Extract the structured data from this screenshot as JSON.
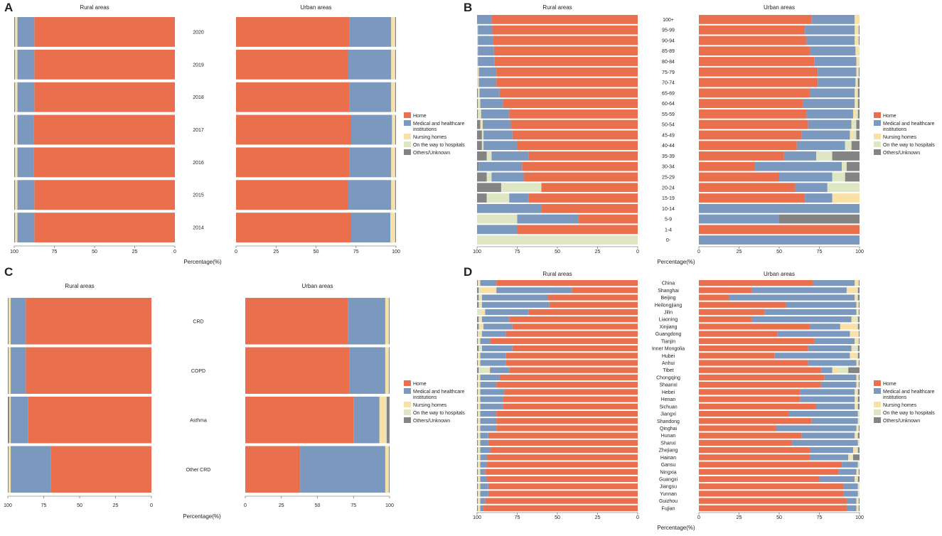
{
  "legend": [
    "Home",
    "Medical and healthcare institutions",
    "Nursing homes",
    "On the way to hospitals",
    "Others/Unknown"
  ],
  "legend_lines": [
    [
      "Home"
    ],
    [
      "Medical and healthcare",
      "institutions"
    ],
    [
      "Nursing homes"
    ],
    [
      "On the way to hospitals"
    ],
    [
      "Others/Unknown"
    ]
  ],
  "colors": [
    "#EA6F4C",
    "#7B98BE",
    "#F8E0A6",
    "#DEE6C4",
    "#848484"
  ],
  "chart_data": [
    {
      "type": "bar",
      "panel": "A",
      "orientation": "horizontal",
      "stacked": true,
      "title_left": "Rural areas",
      "title_right": "Urban areas",
      "xlabel": "Percentage(%)",
      "categories": [
        "2020",
        "2019",
        "2018",
        "2017",
        "2016",
        "2015",
        "2014"
      ],
      "ticks": [
        0,
        25,
        50,
        75,
        100
      ],
      "rural": [
        [
          87.5,
          10.5,
          1,
          0.5,
          0.5
        ],
        [
          87.5,
          10.5,
          1,
          0.5,
          0.5
        ],
        [
          87.5,
          10.5,
          1,
          0.5,
          0.5
        ],
        [
          88,
          10,
          1,
          0.5,
          0.5
        ],
        [
          88,
          10,
          1,
          0.5,
          0.5
        ],
        [
          87.5,
          10.5,
          1,
          0.5,
          0.5
        ],
        [
          87.5,
          10.5,
          1,
          0.5,
          0.5
        ]
      ],
      "urban": [
        [
          71,
          26,
          2,
          0.5,
          0.5
        ],
        [
          70,
          27,
          2,
          0.5,
          0.5
        ],
        [
          71,
          26,
          2,
          0.5,
          0.5
        ],
        [
          72,
          25.5,
          1.5,
          0.5,
          0.5
        ],
        [
          71,
          26,
          2,
          0.5,
          0.5
        ],
        [
          70,
          27,
          2,
          0.5,
          0.5
        ],
        [
          72,
          24.5,
          2.5,
          0.5,
          0.5
        ]
      ]
    },
    {
      "type": "bar",
      "panel": "B",
      "orientation": "horizontal",
      "stacked": true,
      "title_left": "Rural areas",
      "title_right": "Urban areas",
      "xlabel": "Percentage(%)",
      "categories": [
        "100+",
        "95-99",
        "90-94",
        "85-89",
        "80-84",
        "75-79",
        "70-74",
        "65-69",
        "60-64",
        "55-59",
        "50-54",
        "45-49",
        "40-44",
        "35-39",
        "30-34",
        "25-29",
        "20-24",
        "15-19",
        "10-14",
        "5-9",
        "1-4",
        "0-"
      ],
      "ticks": [
        0,
        25,
        50,
        75,
        100
      ],
      "rural": [
        [
          91,
          9,
          0,
          0,
          0
        ],
        [
          90.5,
          9,
          0.5,
          0,
          0
        ],
        [
          90,
          9.5,
          0.5,
          0,
          0
        ],
        [
          89.5,
          10,
          0.5,
          0,
          0
        ],
        [
          89,
          10.5,
          0.5,
          0,
          0
        ],
        [
          88,
          11,
          0.5,
          0.5,
          0
        ],
        [
          88,
          11,
          0.5,
          0.5,
          0
        ],
        [
          86,
          12.5,
          0.5,
          0.5,
          0.5
        ],
        [
          84,
          14,
          0.5,
          1,
          0.5
        ],
        [
          80,
          17.5,
          0.5,
          1.5,
          0.5
        ],
        [
          79,
          17.5,
          0.5,
          1,
          2
        ],
        [
          78,
          18,
          0,
          1,
          3
        ],
        [
          75,
          21,
          0,
          1,
          3
        ],
        [
          68,
          23,
          0,
          3,
          6
        ],
        [
          72,
          27,
          0,
          0,
          1
        ],
        [
          71,
          20,
          0,
          3,
          6
        ],
        [
          60,
          0,
          0,
          25,
          15
        ],
        [
          68,
          12,
          0,
          14,
          6
        ],
        [
          60,
          40,
          0,
          0,
          0
        ],
        [
          37,
          38,
          0,
          25,
          0
        ],
        [
          75,
          25,
          0,
          0,
          0
        ],
        [
          0,
          0,
          0,
          100,
          0
        ]
      ],
      "urban": [
        [
          70,
          27,
          3,
          0,
          0
        ],
        [
          66,
          31,
          2,
          0.5,
          0.5
        ],
        [
          67,
          30,
          2,
          0.5,
          0.5
        ],
        [
          69,
          28.5,
          2,
          0.5,
          0
        ],
        [
          72,
          26,
          1.5,
          0.5,
          0
        ],
        [
          74,
          24,
          1,
          0.5,
          0.5
        ],
        [
          74,
          23.5,
          1,
          0.5,
          1
        ],
        [
          69,
          28,
          1,
          1,
          1
        ],
        [
          65,
          32,
          1,
          1,
          1
        ],
        [
          67,
          29,
          1.5,
          1.5,
          1
        ],
        [
          68,
          27,
          1,
          2,
          2
        ],
        [
          64,
          30,
          2,
          2,
          2
        ],
        [
          61,
          30,
          0,
          4,
          5
        ],
        [
          53,
          20,
          0,
          10,
          17
        ],
        [
          35,
          54,
          0,
          3,
          8
        ],
        [
          50,
          33,
          0,
          8,
          9
        ],
        [
          60,
          20,
          0,
          20,
          0
        ],
        [
          66,
          17,
          17,
          0,
          0
        ],
        [
          0,
          100,
          0,
          0,
          0
        ],
        [
          0,
          50,
          0,
          0,
          50
        ],
        [
          100,
          0,
          0,
          0,
          0
        ],
        [
          0,
          100,
          0,
          0,
          0
        ]
      ]
    },
    {
      "type": "bar",
      "panel": "C",
      "orientation": "horizontal",
      "stacked": true,
      "title_left": "Rural areas",
      "title_right": "Urban areas",
      "xlabel": "Percentage(%)",
      "categories": [
        "CRD",
        "COPD",
        "Asthma",
        "Other CRD"
      ],
      "ticks": [
        0,
        25,
        50,
        75,
        100
      ],
      "rural": [
        [
          87.5,
          10.5,
          1,
          0.5,
          0.5
        ],
        [
          87.5,
          10.5,
          1,
          0.5,
          0.5
        ],
        [
          86,
          12,
          0.5,
          0.5,
          1
        ],
        [
          70,
          28,
          1,
          0.5,
          0.5
        ]
      ],
      "urban": [
        [
          71,
          26,
          2,
          0.5,
          0.5
        ],
        [
          72,
          25,
          2,
          0.5,
          0.5
        ],
        [
          75,
          18,
          4,
          1,
          2
        ],
        [
          38,
          59,
          2,
          0.5,
          0.5
        ]
      ]
    },
    {
      "type": "bar",
      "panel": "D",
      "orientation": "horizontal",
      "stacked": true,
      "title_left": "Rural areas",
      "title_right": "Urban areas",
      "xlabel": "Percentage(%)",
      "categories": [
        "China",
        "Shanghai",
        "Beijing",
        "Heilongjiang",
        "Jilin",
        "Liaoning",
        "Xinjiang",
        "Guangdong",
        "Tianjin",
        "Inner Mongolia",
        "Hubei",
        "Anhui",
        "Tibet",
        "Chongqing",
        "Shaanxi",
        "Hebei",
        "Henan",
        "Sichuan",
        "Jiangxi",
        "Shandong",
        "Qinghai",
        "Hunan",
        "Shanxi",
        "Zhejiang",
        "Hainan",
        "Gansu",
        "Ningxia",
        "Guangxi",
        "Jiangsu",
        "Yunnan",
        "Guizhou",
        "Fujian"
      ],
      "ticks": [
        0,
        25,
        50,
        75,
        100
      ],
      "rural": [
        [
          88,
          10,
          1,
          0.5,
          0.5
        ],
        [
          41,
          47,
          10,
          1,
          1
        ],
        [
          56,
          41,
          1,
          1,
          1
        ],
        [
          55,
          42,
          1,
          1,
          1
        ],
        [
          68,
          27,
          2,
          3,
          0
        ],
        [
          80,
          17,
          1,
          1,
          1
        ],
        [
          78,
          18,
          2,
          1,
          1
        ],
        [
          82,
          15,
          2,
          0.5,
          0.5
        ],
        [
          92,
          6,
          1,
          0.5,
          0.5
        ],
        [
          78,
          19,
          0.5,
          1.5,
          1
        ],
        [
          82,
          16,
          1,
          0.5,
          0.5
        ],
        [
          82,
          16,
          1,
          0.5,
          0.5
        ],
        [
          80,
          12,
          1,
          6,
          1
        ],
        [
          86,
          12,
          1,
          0.5,
          0.5
        ],
        [
          88,
          10,
          1,
          0.5,
          0.5
        ],
        [
          83,
          15,
          1,
          0.5,
          0.5
        ],
        [
          84,
          14,
          1,
          0.5,
          0.5
        ],
        [
          84,
          14,
          1,
          0.5,
          0.5
        ],
        [
          88,
          10,
          1,
          0.5,
          0.5
        ],
        [
          88,
          10,
          1,
          0.5,
          0.5
        ],
        [
          88,
          10,
          1,
          0.5,
          0.5
        ],
        [
          93,
          5,
          1,
          0.5,
          0.5
        ],
        [
          93,
          5,
          1,
          0.5,
          0.5
        ],
        [
          92,
          6,
          1,
          0.5,
          0.5
        ],
        [
          94,
          4,
          1,
          0.5,
          0.5
        ],
        [
          94,
          4,
          1,
          0.5,
          0.5
        ],
        [
          95,
          3,
          1,
          0.5,
          0.5
        ],
        [
          94,
          4,
          1,
          0.5,
          0.5
        ],
        [
          93,
          5,
          1,
          0.5,
          0.5
        ],
        [
          93,
          5,
          1,
          0.5,
          0.5
        ],
        [
          95,
          3,
          1,
          0.5,
          0.5
        ],
        [
          96,
          2,
          1,
          0.5,
          0.5
        ]
      ],
      "urban": [
        [
          71,
          26,
          2,
          0.5,
          0.5
        ],
        [
          33,
          59,
          6,
          1,
          1
        ],
        [
          19,
          78,
          1,
          1,
          1
        ],
        [
          54,
          44,
          1,
          0.5,
          0.5
        ],
        [
          41,
          57,
          1,
          0.5,
          0.5
        ],
        [
          33,
          62,
          2,
          2,
          1
        ],
        [
          69,
          19,
          10,
          1,
          1
        ],
        [
          49,
          45,
          5,
          0.5,
          0.5
        ],
        [
          72,
          25,
          2,
          0.5,
          0.5
        ],
        [
          68,
          27,
          1,
          3,
          1
        ],
        [
          47,
          47,
          4,
          1,
          1
        ],
        [
          68,
          30,
          1,
          0.5,
          0.5
        ],
        [
          76,
          7,
          4,
          6,
          7
        ],
        [
          78,
          20,
          1,
          0.5,
          0.5
        ],
        [
          76,
          22,
          1,
          0.5,
          0.5
        ],
        [
          63,
          34,
          1,
          1,
          1
        ],
        [
          63,
          34,
          1,
          1,
          1
        ],
        [
          73,
          24,
          1,
          1,
          1
        ],
        [
          56,
          43,
          0.5,
          0.5,
          0
        ],
        [
          70,
          29,
          0.5,
          0.5,
          0
        ],
        [
          48,
          50,
          1,
          0.5,
          0.5
        ],
        [
          64,
          33,
          1,
          1,
          1
        ],
        [
          58,
          41,
          0.5,
          0.5,
          0
        ],
        [
          69,
          27,
          2,
          1,
          1
        ],
        [
          69,
          24,
          2,
          1,
          4
        ],
        [
          89,
          10,
          0.5,
          0.5,
          0
        ],
        [
          87,
          11,
          1,
          0.5,
          0.5
        ],
        [
          75,
          22,
          1,
          1,
          1
        ],
        [
          90,
          9,
          0.5,
          0.5,
          0
        ],
        [
          90,
          9,
          0.5,
          0.5,
          0
        ],
        [
          92,
          6,
          1,
          0.5,
          0.5
        ],
        [
          92,
          6,
          1,
          0.5,
          0.5
        ]
      ]
    }
  ]
}
